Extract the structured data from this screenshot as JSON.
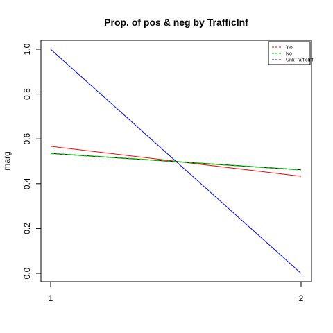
{
  "chart_data": {
    "type": "line",
    "title": "Prop. of pos & neg by TrafficInf",
    "xlabel": "",
    "ylabel": "marg",
    "x": [
      1,
      2
    ],
    "xticks": [
      "1",
      "2"
    ],
    "xlim": [
      1,
      2
    ],
    "ylim": [
      0,
      1
    ],
    "yticks": [
      "0.0",
      "0.2",
      "0.4",
      "0.6",
      "0.8",
      "1.0"
    ],
    "grid": false,
    "legend_position": "top-right",
    "series": [
      {
        "name": "Yes",
        "values": [
          0.567,
          0.433
        ],
        "color": "#ff0000",
        "dash": "solid",
        "legend_dash": "dashed"
      },
      {
        "name": "No",
        "values": [
          0.535,
          0.462
        ],
        "color": "#00cc00",
        "dash": "dashed",
        "legend_dash": "dashed"
      },
      {
        "name": "UnkTrafficInf",
        "values": [
          1.0,
          0.0
        ],
        "color": "#0000ff",
        "dash": "solid",
        "legend_dash": "dashed"
      },
      {
        "name": "",
        "values": [
          0.535,
          0.462
        ],
        "color": "#000000",
        "dash": "solid",
        "legend_dash": "none"
      }
    ]
  }
}
